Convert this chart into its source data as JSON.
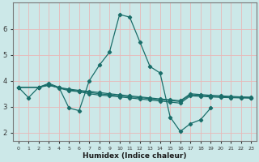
{
  "title": "",
  "xlabel": "Humidex (Indice chaleur)",
  "ylabel": "",
  "background_color": "#cce8e8",
  "grid_color": "#e8b8b8",
  "line_color": "#1a6e6a",
  "xlim": [
    -0.5,
    23.5
  ],
  "ylim": [
    1.7,
    7.0
  ],
  "yticks": [
    2,
    3,
    4,
    5,
    6
  ],
  "xticks": [
    0,
    1,
    2,
    3,
    4,
    5,
    6,
    7,
    8,
    9,
    10,
    11,
    12,
    13,
    14,
    15,
    16,
    17,
    18,
    19,
    20,
    21,
    22,
    23
  ],
  "series": [
    {
      "x": [
        0,
        1,
        2,
        3,
        4,
        5,
        6,
        7,
        8,
        9,
        10,
        11,
        12,
        13,
        14,
        15,
        16,
        17,
        18,
        19
      ],
      "y": [
        3.75,
        3.35,
        3.75,
        3.9,
        3.75,
        2.95,
        2.85,
        4.0,
        4.6,
        5.1,
        6.55,
        6.45,
        5.5,
        4.55,
        4.3,
        2.6,
        2.05,
        2.35,
        2.5,
        2.95
      ]
    },
    {
      "x": [
        0,
        2,
        3,
        4,
        5,
        6,
        7,
        8,
        9,
        10,
        11,
        12,
        13,
        14,
        15,
        16,
        17,
        18,
        19,
        20,
        21,
        22,
        23
      ],
      "y": [
        3.75,
        3.75,
        3.85,
        3.72,
        3.62,
        3.58,
        3.5,
        3.45,
        3.42,
        3.38,
        3.34,
        3.3,
        3.26,
        3.22,
        3.18,
        3.14,
        3.42,
        3.4,
        3.38,
        3.36,
        3.35,
        3.34,
        3.33
      ]
    },
    {
      "x": [
        0,
        2,
        3,
        4,
        5,
        6,
        7,
        8,
        9,
        10,
        11,
        12,
        13,
        14,
        15,
        16,
        17,
        18,
        19,
        20,
        21,
        22,
        23
      ],
      "y": [
        3.75,
        3.75,
        3.85,
        3.73,
        3.65,
        3.6,
        3.55,
        3.5,
        3.46,
        3.42,
        3.38,
        3.35,
        3.31,
        3.27,
        3.24,
        3.2,
        3.46,
        3.44,
        3.41,
        3.39,
        3.37,
        3.36,
        3.35
      ]
    },
    {
      "x": [
        0,
        2,
        3,
        4,
        5,
        6,
        7,
        8,
        9,
        10,
        11,
        12,
        13,
        14,
        15,
        16,
        17,
        18,
        19,
        20,
        21,
        22,
        23
      ],
      "y": [
        3.75,
        3.75,
        3.82,
        3.74,
        3.68,
        3.63,
        3.59,
        3.55,
        3.5,
        3.46,
        3.42,
        3.38,
        3.34,
        3.3,
        3.27,
        3.23,
        3.5,
        3.47,
        3.44,
        3.42,
        3.4,
        3.38,
        3.37
      ]
    }
  ]
}
